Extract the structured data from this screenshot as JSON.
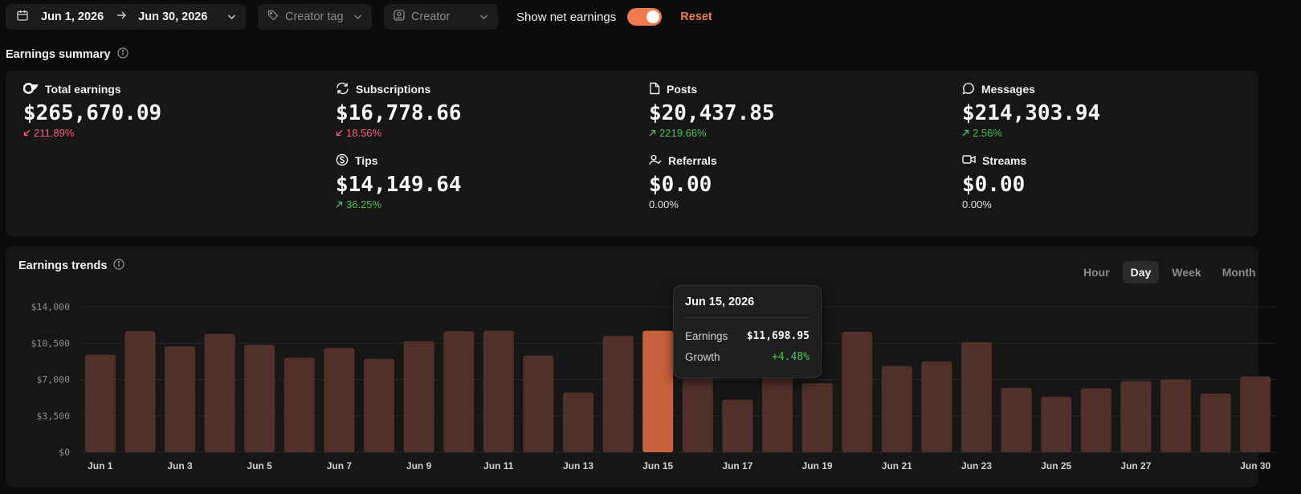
{
  "toolbar": {
    "start_date": "Jun 1, 2026",
    "end_date": "Jun 30, 2026",
    "creator_tag_placeholder": "Creator tag",
    "creator_placeholder": "Creator",
    "net_earnings_label": "Show net earnings",
    "net_earnings_on": true,
    "reset_label": "Reset"
  },
  "summary": {
    "title": "Earnings summary",
    "metrics": [
      {
        "label": "Total earnings",
        "value": "$265,670.09",
        "change": "211.89%",
        "direction": "down",
        "icon": "brand-logo-icon"
      },
      {
        "label": "Subscriptions",
        "value": "$16,778.66",
        "change": "18.56%",
        "direction": "down",
        "icon": "refresh-icon"
      },
      {
        "label": "Posts",
        "value": "$20,437.85",
        "change": "2219.66%",
        "direction": "up",
        "icon": "document-icon"
      },
      {
        "label": "Messages",
        "value": "$214,303.94",
        "change": "2.56%",
        "direction": "up",
        "icon": "message-bubble-icon"
      },
      {
        "label": "Tips",
        "value": "$14,149.64",
        "change": "36.25%",
        "direction": "up",
        "icon": "dollar-circle-icon"
      },
      {
        "label": "Referrals",
        "value": "$0.00",
        "change": "0.00%",
        "direction": "flat",
        "icon": "user-check-icon"
      },
      {
        "label": "Streams",
        "value": "$0.00",
        "change": "0.00%",
        "direction": "flat",
        "icon": "video-icon"
      }
    ]
  },
  "trends": {
    "title": "Earnings trends",
    "ranges": [
      "Hour",
      "Day",
      "Week",
      "Month"
    ],
    "active_range": "Day",
    "tooltip": {
      "date": "Jun 15, 2026",
      "earnings_label": "Earnings",
      "earnings_value": "$11,698.95",
      "growth_label": "Growth",
      "growth_value": "+4.48%"
    }
  },
  "colors": {
    "accent": "#f07a50",
    "bar": "#51302a",
    "bar_highlight": "#c8613c",
    "up": "#4cc15a",
    "down": "#ff5c7d"
  },
  "chart_data": {
    "type": "bar",
    "categories": [
      "Jun 1",
      "Jun 2",
      "Jun 3",
      "Jun 4",
      "Jun 5",
      "Jun 6",
      "Jun 7",
      "Jun 8",
      "Jun 9",
      "Jun 10",
      "Jun 11",
      "Jun 12",
      "Jun 13",
      "Jun 14",
      "Jun 15",
      "Jun 16",
      "Jun 17",
      "Jun 18",
      "Jun 19",
      "Jun 20",
      "Jun 21",
      "Jun 22",
      "Jun 23",
      "Jun 24",
      "Jun 25",
      "Jun 26",
      "Jun 27",
      "Jun 28",
      "Jun 29",
      "Jun 30"
    ],
    "tick_labels": [
      "Jun 1",
      "Jun 3",
      "Jun 5",
      "Jun 7",
      "Jun 9",
      "Jun 11",
      "Jun 13",
      "Jun 15",
      "Jun 17",
      "Jun 19",
      "Jun 21",
      "Jun 23",
      "Jun 25",
      "Jun 27",
      "Jun 30"
    ],
    "values": [
      9400,
      11650,
      10200,
      11400,
      10350,
      9100,
      10050,
      9000,
      10700,
      11650,
      11700,
      9300,
      5750,
      11200,
      11698.95,
      7600,
      5050,
      7300,
      6650,
      11600,
      8300,
      8750,
      10600,
      6200,
      5350,
      6150,
      6850,
      7000,
      5650,
      7300
    ],
    "highlight_index": 14,
    "y_ticks": [
      "$0",
      "$3,500",
      "$7,000",
      "$10,500",
      "$14,000"
    ],
    "ylim": [
      0,
      14000
    ],
    "grid": true
  }
}
